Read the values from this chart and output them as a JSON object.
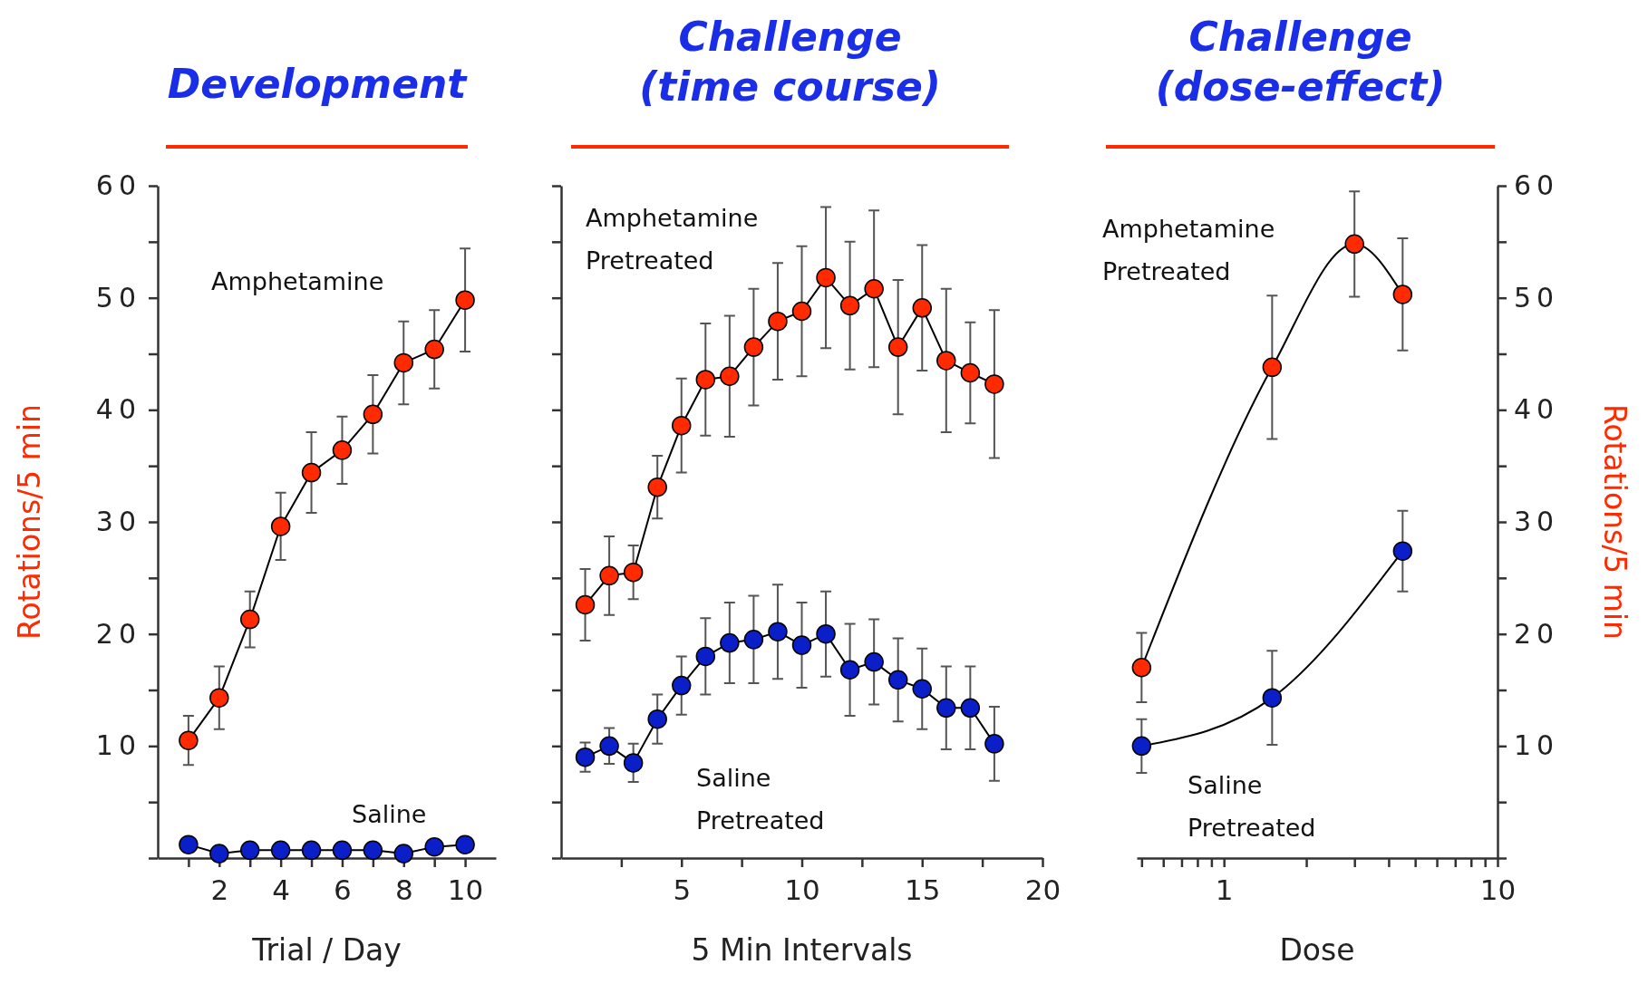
{
  "chart_data": [
    {
      "type": "line",
      "title": "Development",
      "xlabel": "Trial / Day",
      "ylabel": "Rotations/5 min",
      "xlim": [
        0,
        11
      ],
      "xticks": [
        {
          "value": 1,
          "label": null
        },
        2,
        {
          "value": 3,
          "label": null
        },
        4,
        {
          "value": 5,
          "label": null
        },
        6,
        {
          "value": 7,
          "label": null
        },
        8,
        {
          "value": 9,
          "label": null
        },
        10
      ],
      "ylim": [
        0,
        60
      ],
      "yticks": [
        {
          "value": 0,
          "label": null
        },
        {
          "value": 5,
          "label": null
        },
        10,
        {
          "value": 15,
          "label": null
        },
        20,
        {
          "value": 25,
          "label": null
        },
        30,
        {
          "value": 35,
          "label": null
        },
        40,
        {
          "value": 45,
          "label": null
        },
        50,
        {
          "value": 55,
          "label": null
        },
        60
      ],
      "marker": "circle",
      "x": [
        1,
        2,
        3,
        4,
        5,
        6,
        7,
        8,
        9,
        10
      ],
      "series": [
        {
          "name": "Amphetamine",
          "color": "#ff2a00",
          "values": [
            10.5,
            14.3,
            21.3,
            29.6,
            34.4,
            36.4,
            39.6,
            44.2,
            45.4,
            49.8
          ],
          "errors": [
            2.2,
            2.8,
            2.5,
            3,
            3.6,
            3,
            3.5,
            3.7,
            3.5,
            4.6
          ]
        },
        {
          "name": "Saline",
          "color": "#0a1fc8",
          "values": [
            1.2,
            0.4,
            0.7,
            0.7,
            0.7,
            0.7,
            0.7,
            0.4,
            1.0,
            1.2
          ]
        }
      ]
    },
    {
      "type": "line",
      "title": "Challenge\n(time course)",
      "xlabel": "5 Min Intervals",
      "xlim": [
        0,
        20
      ],
      "xticks": [
        {
          "value": 2.5,
          "label": null
        },
        5,
        {
          "value": 7.5,
          "label": null
        },
        10,
        {
          "value": 12.5,
          "label": null
        },
        15,
        {
          "value": 17.5,
          "label": null
        },
        20
      ],
      "ylim": [
        0,
        60
      ],
      "yticks": [
        {
          "value": 0,
          "label": null
        },
        {
          "value": 5,
          "label": null
        },
        {
          "value": 10,
          "label": null
        },
        {
          "value": 15,
          "label": null
        },
        {
          "value": 20,
          "label": null
        },
        {
          "value": 25,
          "label": null
        },
        {
          "value": 30,
          "label": null
        },
        {
          "value": 35,
          "label": null
        },
        {
          "value": 40,
          "label": null
        },
        {
          "value": 45,
          "label": null
        },
        {
          "value": 50,
          "label": null
        },
        {
          "value": 55,
          "label": null
        },
        {
          "value": 60,
          "label": null
        }
      ],
      "tick_labels": "x",
      "marker": "circle",
      "x": [
        1,
        2,
        3,
        4,
        5,
        6,
        7,
        8,
        9,
        10,
        11,
        12,
        13,
        14,
        15,
        16,
        17,
        18
      ],
      "series": [
        {
          "name": "Amphetamine\nPretreated",
          "color": "#ff2a00",
          "values": [
            22.6,
            25.2,
            25.5,
            33.1,
            38.6,
            42.7,
            43.0,
            45.6,
            47.9,
            48.8,
            51.8,
            49.3,
            50.8,
            45.6,
            49.1,
            44.4,
            43.3,
            42.3
          ],
          "errors": [
            3.2,
            3.5,
            2.4,
            2.8,
            4.2,
            5,
            5.4,
            5.2,
            5.2,
            5.8,
            6.3,
            5.7,
            7,
            6,
            5.6,
            6.4,
            4.5,
            6.6
          ]
        },
        {
          "name": "Saline\nPretreated",
          "color": "#0a1fc8",
          "values": [
            9.0,
            10.0,
            8.5,
            12.4,
            15.4,
            18.0,
            19.2,
            19.5,
            20.2,
            19.0,
            20.0,
            16.8,
            17.5,
            15.9,
            15.1,
            13.4,
            13.4,
            10.2
          ],
          "errors": [
            1.3,
            1.6,
            1.7,
            2.2,
            2.6,
            3.4,
            3.6,
            3.9,
            4.2,
            3.8,
            3.8,
            4.1,
            3.8,
            3.7,
            3.6,
            3.7,
            3.7,
            3.3
          ]
        }
      ]
    },
    {
      "type": "line",
      "title": "Challenge\n(dose-effect)",
      "xlabel": "Dose",
      "y2label": "Rotations/5 min",
      "log": "x",
      "xlim": [
        0.48,
        10
      ],
      "xticks": [
        {
          "value": 0.5,
          "label": null
        },
        {
          "value": 0.6,
          "label": null
        },
        {
          "value": 0.7,
          "label": null
        },
        {
          "value": 0.8,
          "label": null
        },
        {
          "value": 0.9,
          "label": null
        },
        1,
        {
          "value": 2,
          "label": null
        },
        {
          "value": 3,
          "label": null
        },
        {
          "value": 4,
          "label": null
        },
        {
          "value": 5,
          "label": null
        },
        {
          "value": 6,
          "label": null
        },
        {
          "value": 7,
          "label": null
        },
        {
          "value": 8,
          "label": null
        },
        {
          "value": 9,
          "label": null
        },
        10
      ],
      "y2lim": [
        0,
        60
      ],
      "y2ticks": [
        {
          "value": 0,
          "label": null
        },
        {
          "value": 5,
          "label": null
        },
        10,
        {
          "value": 15,
          "label": null
        },
        20,
        {
          "value": 25,
          "label": null
        },
        30,
        {
          "value": 35,
          "label": null
        },
        40,
        {
          "value": 45,
          "label": null
        },
        50,
        {
          "value": 55,
          "label": null
        },
        60
      ],
      "marker": "circle",
      "series": [
        {
          "name": "Amphetamine\nPretreated",
          "axis": "y2",
          "color": "#ff2a00",
          "x": [
            0.5,
            1.5,
            3,
            4.5
          ],
          "values": [
            17.0,
            43.8,
            54.8,
            50.3
          ],
          "errors": [
            3.1,
            6.4,
            4.7,
            5.0
          ]
        },
        {
          "name": "Saline\nPretreated",
          "axis": "y2",
          "color": "#0a1fc8",
          "x": [
            0.5,
            1.5,
            4.5
          ],
          "values": [
            10.0,
            14.3,
            27.4
          ],
          "errors": [
            2.4,
            4.2,
            3.6
          ]
        }
      ]
    }
  ]
}
